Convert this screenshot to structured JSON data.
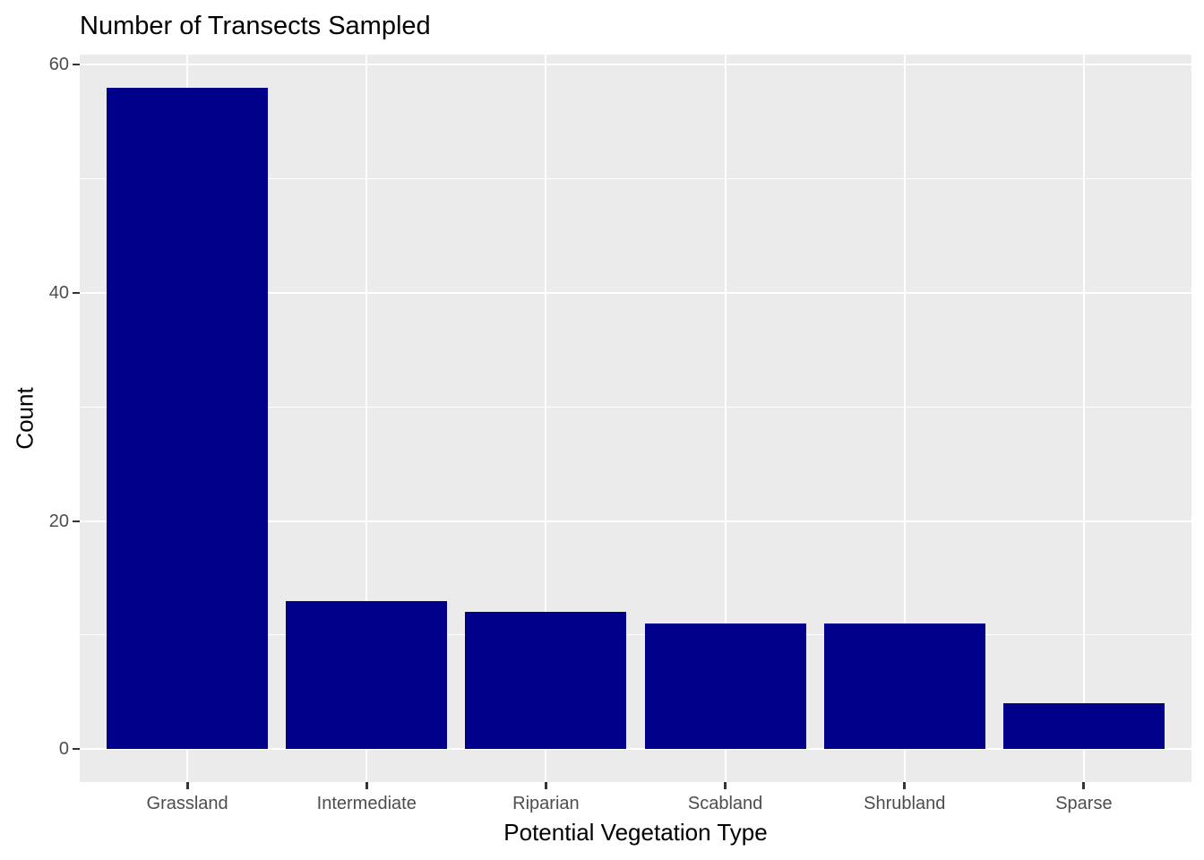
{
  "title": "Number of Transects Sampled",
  "chart_data": {
    "type": "bar",
    "title": "Number of Transects Sampled",
    "categories": [
      "Grassland",
      "Intermediate",
      "Riparian",
      "Scabland",
      "Shrubland",
      "Sparse"
    ],
    "values": [
      58,
      13,
      12,
      11,
      11,
      4
    ],
    "xlabel": "Potential Vegetation Type",
    "ylabel": "Count",
    "ylim": [
      -2.9,
      60.9
    ],
    "y_major_ticks": [
      0,
      20,
      40,
      60
    ],
    "y_minor_gridlines": [
      10,
      30,
      50
    ],
    "grid": true,
    "legend_position": "none",
    "style": "ggplot2-theme-gray",
    "colors": {
      "bar_fill": "#00008B",
      "panel_background": "#EBEBEB",
      "gridline": "#FFFFFF",
      "axis_text": "#4D4D4D",
      "tick_mark": "#333333",
      "title_text": "#000000"
    }
  }
}
